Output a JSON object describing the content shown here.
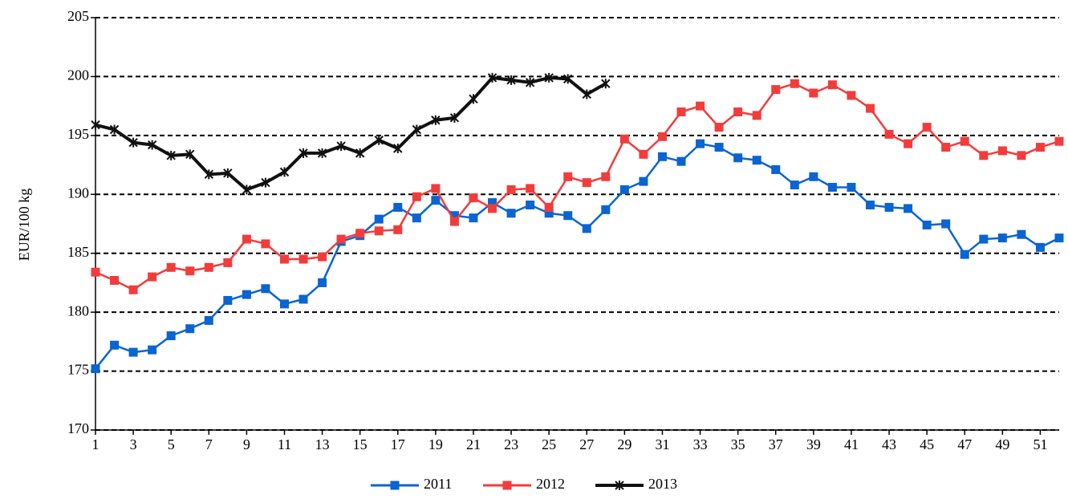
{
  "chart_data": {
    "type": "line",
    "y_label": "EUR/100 kg",
    "x": [
      1,
      2,
      3,
      4,
      5,
      6,
      7,
      8,
      9,
      10,
      11,
      12,
      13,
      14,
      15,
      16,
      17,
      18,
      19,
      20,
      21,
      22,
      23,
      24,
      25,
      26,
      27,
      28,
      29,
      30,
      31,
      32,
      33,
      34,
      35,
      36,
      37,
      38,
      39,
      40,
      41,
      42,
      43,
      44,
      45,
      46,
      47,
      48,
      49,
      50,
      51,
      52
    ],
    "xlim": [
      1,
      52
    ],
    "xticks": [
      1,
      3,
      5,
      7,
      9,
      11,
      13,
      15,
      17,
      19,
      21,
      23,
      25,
      27,
      29,
      31,
      33,
      35,
      37,
      39,
      41,
      43,
      45,
      47,
      49,
      51
    ],
    "ylim": [
      170,
      205
    ],
    "yticks": [
      170,
      175,
      180,
      185,
      190,
      195,
      200,
      205
    ],
    "grid": true,
    "legend": "bottom",
    "series": [
      {
        "name": "2011",
        "color": "#0a64d2",
        "marker": "square",
        "values": [
          175.2,
          177.2,
          176.6,
          176.8,
          178.0,
          178.6,
          179.3,
          181.0,
          181.5,
          182.0,
          180.7,
          181.1,
          182.5,
          186.0,
          186.5,
          187.9,
          188.9,
          188.0,
          189.5,
          188.2,
          188.0,
          189.3,
          188.4,
          189.1,
          188.4,
          188.2,
          187.1,
          188.7,
          190.4,
          191.1,
          193.2,
          192.8,
          194.3,
          194.0,
          193.1,
          192.9,
          192.1,
          190.8,
          191.5,
          190.6,
          190.6,
          189.1,
          188.9,
          188.8,
          187.4,
          187.5,
          184.9,
          186.2,
          186.3,
          186.6,
          185.5,
          186.3
        ]
      },
      {
        "name": "2012",
        "color": "#f23c3c",
        "marker": "square",
        "values": [
          183.4,
          182.7,
          181.9,
          183.0,
          183.8,
          183.5,
          183.8,
          184.2,
          186.2,
          185.8,
          184.5,
          184.5,
          184.7,
          186.2,
          186.7,
          186.9,
          187.0,
          189.8,
          190.5,
          187.7,
          189.7,
          188.8,
          190.4,
          190.5,
          188.9,
          191.5,
          191.0,
          191.5,
          194.7,
          193.4,
          194.9,
          197.0,
          197.5,
          195.7,
          197.0,
          196.7,
          198.9,
          199.4,
          198.6,
          199.3,
          198.4,
          197.3,
          195.1,
          194.3,
          195.7,
          194.0,
          194.5,
          193.3,
          193.7,
          193.3,
          194.0,
          194.5
        ]
      },
      {
        "name": "2013",
        "color": "#111111",
        "marker": "star",
        "values": [
          195.9,
          195.5,
          194.4,
          194.2,
          193.3,
          193.4,
          191.7,
          191.8,
          190.4,
          191.0,
          191.9,
          193.5,
          193.5,
          194.1,
          193.5,
          194.6,
          193.9,
          195.5,
          196.3,
          196.5,
          198.1,
          199.9,
          199.7,
          199.5,
          199.9,
          199.8,
          198.5,
          199.4,
          null,
          null,
          null,
          null,
          null,
          null,
          null,
          null,
          null,
          null,
          null,
          null,
          null,
          null,
          null,
          null,
          null,
          null,
          null,
          null,
          null,
          null,
          null,
          null
        ]
      }
    ]
  }
}
